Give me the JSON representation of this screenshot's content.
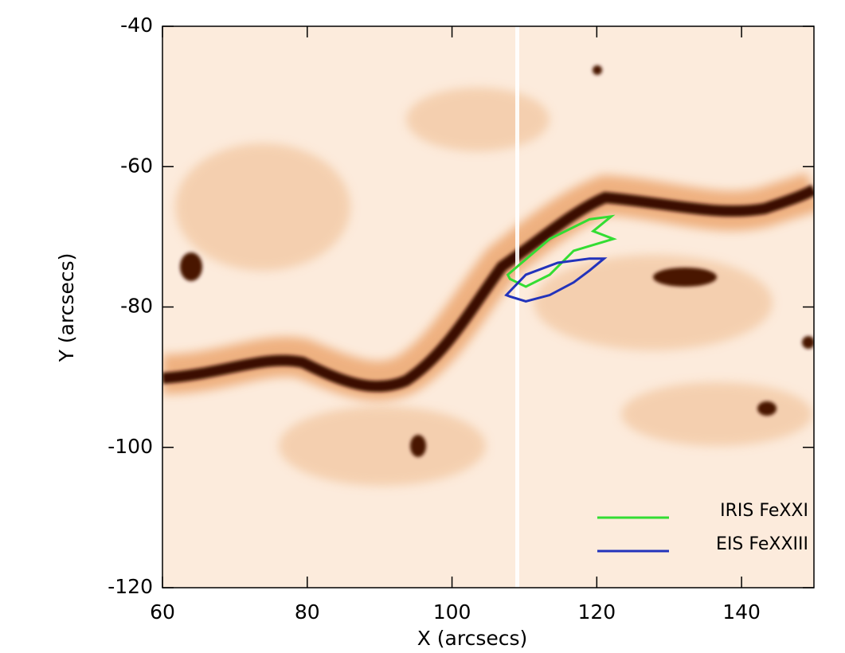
{
  "chart_data": {
    "type": "contour",
    "xlabel": "X (arcsecs)",
    "ylabel": "Y (arcsecs)",
    "xlim": [
      60,
      150
    ],
    "ylim": [
      -120,
      -40
    ],
    "xticks": [
      60,
      80,
      100,
      120,
      140
    ],
    "yticks": [
      -120,
      -100,
      -80,
      -60,
      -40
    ],
    "legend": "lower right",
    "series": [
      {
        "name": "IRIS FeXXI",
        "color": "#33dd33",
        "x": [
          107.7,
          113.5,
          119,
          122,
          119.5,
          122.3,
          116.8,
          113.5,
          110.2,
          108
        ],
        "y": [
          -75.4,
          -70.3,
          -67.5,
          -67.1,
          -69.2,
          -70.3,
          -72,
          -75.4,
          -77.1,
          -76
        ]
      },
      {
        "name": "EIS FeXXIII",
        "color": "#2233bb",
        "x": [
          107.5,
          110.2,
          114.6,
          119,
          121,
          119,
          116.8,
          113.5,
          110.2,
          108
        ],
        "y": [
          -78.3,
          -75.4,
          -73.7,
          -73.1,
          -73.1,
          -74.8,
          -76.5,
          -78.3,
          -79.2,
          -78.5
        ]
      }
    ]
  }
}
